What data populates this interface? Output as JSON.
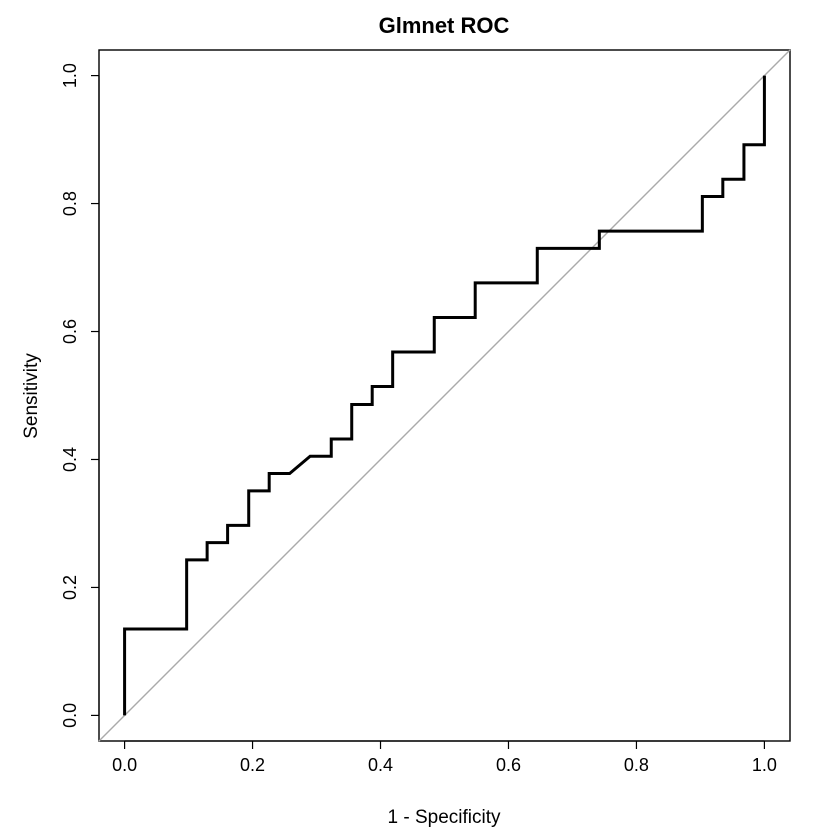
{
  "chart_data": {
    "type": "line",
    "title": "Glmnet ROC",
    "xlabel": "1 - Specificity",
    "ylabel": "Sensitivity",
    "xlim": [
      -0.04,
      1.04
    ],
    "ylim": [
      -0.04,
      1.04
    ],
    "xticks": [
      0.0,
      0.2,
      0.4,
      0.6,
      0.8,
      1.0
    ],
    "yticks": [
      0.0,
      0.2,
      0.4,
      0.6,
      0.8,
      1.0
    ],
    "xtick_labels": [
      "0.0",
      "0.2",
      "0.4",
      "0.6",
      "0.8",
      "1.0"
    ],
    "ytick_labels": [
      "0.0",
      "0.2",
      "0.4",
      "0.6",
      "0.8",
      "1.0"
    ],
    "grid": false,
    "series": [
      {
        "type": "step",
        "color": "#000000",
        "x": [
          0.0,
          0.0,
          0.097,
          0.097,
          0.129,
          0.129,
          0.161,
          0.161,
          0.194,
          0.194,
          0.226,
          0.226,
          0.258,
          0.29,
          0.323,
          0.323,
          0.355,
          0.355,
          0.387,
          0.387,
          0.419,
          0.419,
          0.484,
          0.484,
          0.548,
          0.548,
          0.645,
          0.645,
          0.742,
          0.742,
          0.903,
          0.903,
          0.935,
          0.935,
          0.968,
          0.968,
          1.0,
          1.0
        ],
        "y": [
          0.0,
          0.135,
          0.135,
          0.243,
          0.243,
          0.27,
          0.27,
          0.297,
          0.297,
          0.351,
          0.351,
          0.378,
          0.378,
          0.405,
          0.405,
          0.432,
          0.432,
          0.486,
          0.486,
          0.514,
          0.514,
          0.568,
          0.568,
          0.622,
          0.622,
          0.676,
          0.676,
          0.73,
          0.73,
          0.757,
          0.757,
          0.811,
          0.811,
          0.838,
          0.838,
          0.892,
          0.892,
          1.0
        ]
      },
      {
        "type": "reference",
        "color": "#aaaaaa",
        "x": [
          -0.04,
          1.04
        ],
        "y": [
          -0.04,
          1.04
        ]
      }
    ]
  }
}
